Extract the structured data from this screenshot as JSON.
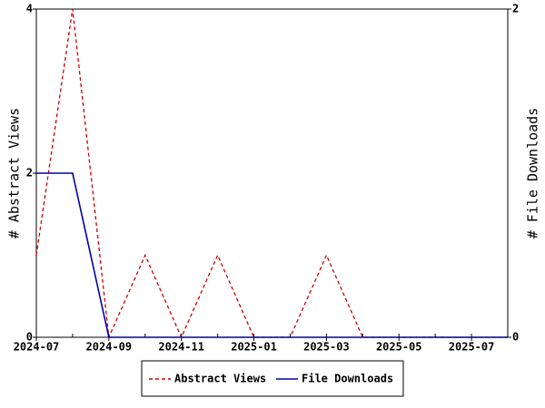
{
  "chart_data": {
    "type": "line",
    "x": [
      "2024-07",
      "2024-08",
      "2024-09",
      "2024-10",
      "2024-11",
      "2024-12",
      "2025-01",
      "2025-02",
      "2025-03",
      "2025-04",
      "2025-05",
      "2025-06",
      "2025-07",
      "2025-08"
    ],
    "xticks": [
      "2024-07",
      "2024-09",
      "2024-11",
      "2025-01",
      "2025-03",
      "2025-05",
      "2025-07"
    ],
    "ylabel": "# Abstract Views",
    "y2label": "# File Downloads",
    "ylim": [
      0,
      4
    ],
    "yticks": [
      0,
      2,
      4
    ],
    "y2lim": [
      0,
      2
    ],
    "y2ticks": [
      0,
      2
    ],
    "legend": "bottom",
    "series": [
      {
        "name": "Abstract Views",
        "color": "#cc0000",
        "dash": true,
        "values": [
          1,
          4,
          0,
          1,
          0,
          1,
          0,
          0,
          1,
          0,
          0,
          0,
          0,
          0
        ]
      },
      {
        "name": "File Downloads",
        "color": "#0000aa",
        "axis": "y2",
        "dash": false,
        "values": [
          1,
          1,
          0,
          0,
          0,
          0,
          0,
          0,
          0,
          0,
          0,
          0,
          0,
          0
        ]
      }
    ]
  }
}
